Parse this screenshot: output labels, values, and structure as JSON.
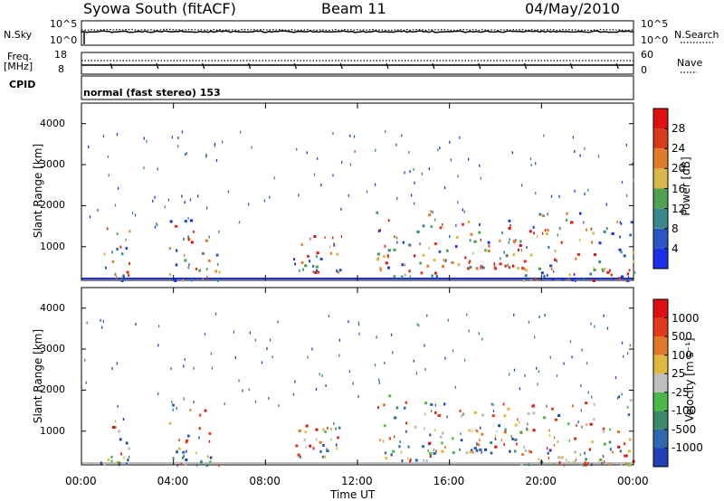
{
  "header": {
    "station": "Syowa South (fitACF)",
    "beam": "Beam 11",
    "date": "04/May/2010"
  },
  "side_labels": {
    "nsky": "N.Sky",
    "nsky_ticks": [
      "10^5",
      "10^0"
    ],
    "nsearch": "N.Search",
    "nsearch_ticks": [
      "10^5",
      "10^0"
    ],
    "freq_line1": "Freq.",
    "freq_line2": "[MHz]",
    "freq_ticks": [
      "18",
      "8"
    ],
    "nave": "Nave",
    "nave_ticks": [
      "60",
      "0"
    ],
    "cpid": "CPID",
    "cpid_text": "normal (fast stereo) 153"
  },
  "axes": {
    "range_label": "Slant Range [km]",
    "range_ticks": [
      "1000",
      "2000",
      "3000",
      "4000"
    ],
    "time_label": "Time UT",
    "time_ticks": [
      "00:00",
      "04:00",
      "08:00",
      "12:00",
      "16:00",
      "20:00",
      "00:00"
    ]
  },
  "colorbars": {
    "power": {
      "label": "Power [dB]",
      "ticks": [
        "4",
        "8",
        "12",
        "16",
        "20",
        "24",
        "28"
      ],
      "colors": [
        "#1a2fe8",
        "#2a55c2",
        "#3a8a8c",
        "#4fa052",
        "#d8b84a",
        "#e07b2a",
        "#d83a1a",
        "#e01010"
      ]
    },
    "velocity": {
      "label": "Velocity [m s⁻¹]",
      "ticks": [
        "1000",
        "500",
        "100",
        "25",
        "-25",
        "-100",
        "-500",
        "-1000"
      ],
      "colors": [
        "#2040b8",
        "#2f68b0",
        "#3a8a6a",
        "#48b848",
        "#bfbfbf",
        "#e0b840",
        "#e07a2a",
        "#e03a1a",
        "#e01010"
      ]
    }
  },
  "chart_data": [
    {
      "type": "line",
      "title": "N.Sky / N.Search",
      "ylabel": "N.Sky",
      "series": [
        {
          "name": "N.Sky"
        },
        {
          "name": "N.Search"
        }
      ],
      "x_range_hours": [
        0,
        24
      ]
    },
    {
      "type": "line",
      "ylabel": "Freq. [MHz]",
      "ylim": [
        8,
        18
      ],
      "series": [
        {
          "name": "Nave"
        }
      ],
      "x_range_hours": [
        0,
        24
      ]
    },
    {
      "type": "heatmap",
      "ylabel": "Slant Range [km]",
      "xlabel": "Time UT",
      "ylim": [
        180,
        4500
      ],
      "xlim_hours": [
        0,
        24
      ],
      "colorbar": "Power [dB]",
      "colorbar_range": [
        0,
        30
      ],
      "regions": [
        {
          "t0": 0.8,
          "t1": 2.2,
          "r0": 200,
          "r1": 1500,
          "density": 0.5
        },
        {
          "t0": 3.8,
          "t1": 6.0,
          "r0": 200,
          "r1": 1700,
          "density": 0.55
        },
        {
          "t0": 9.2,
          "t1": 11.3,
          "r0": 400,
          "r1": 1300,
          "density": 0.5
        },
        {
          "t0": 12.8,
          "t1": 15.5,
          "r0": 300,
          "r1": 2000,
          "density": 0.6
        },
        {
          "t0": 15.5,
          "t1": 19.5,
          "r0": 500,
          "r1": 1700,
          "density": 0.55
        },
        {
          "t0": 19.0,
          "t1": 24.0,
          "r0": 200,
          "r1": 1900,
          "density": 0.6
        }
      ]
    },
    {
      "type": "heatmap",
      "ylabel": "Slant Range [km]",
      "xlabel": "Time UT",
      "ylim": [
        180,
        4500
      ],
      "xlim_hours": [
        0,
        24
      ],
      "colorbar": "Velocity [m s⁻¹]",
      "colorbar_range": [
        -1000,
        1000
      ],
      "regions": [
        {
          "t0": 0.8,
          "t1": 2.2,
          "r0": 200,
          "r1": 1500,
          "density": 0.5
        },
        {
          "t0": 3.8,
          "t1": 6.0,
          "r0": 200,
          "r1": 1700,
          "density": 0.55
        },
        {
          "t0": 9.2,
          "t1": 11.3,
          "r0": 400,
          "r1": 1300,
          "density": 0.5
        },
        {
          "t0": 12.8,
          "t1": 15.5,
          "r0": 300,
          "r1": 2000,
          "density": 0.6
        },
        {
          "t0": 15.5,
          "t1": 19.5,
          "r0": 500,
          "r1": 1700,
          "density": 0.55
        },
        {
          "t0": 19.0,
          "t1": 24.0,
          "r0": 200,
          "r1": 1900,
          "density": 0.6
        }
      ]
    }
  ]
}
